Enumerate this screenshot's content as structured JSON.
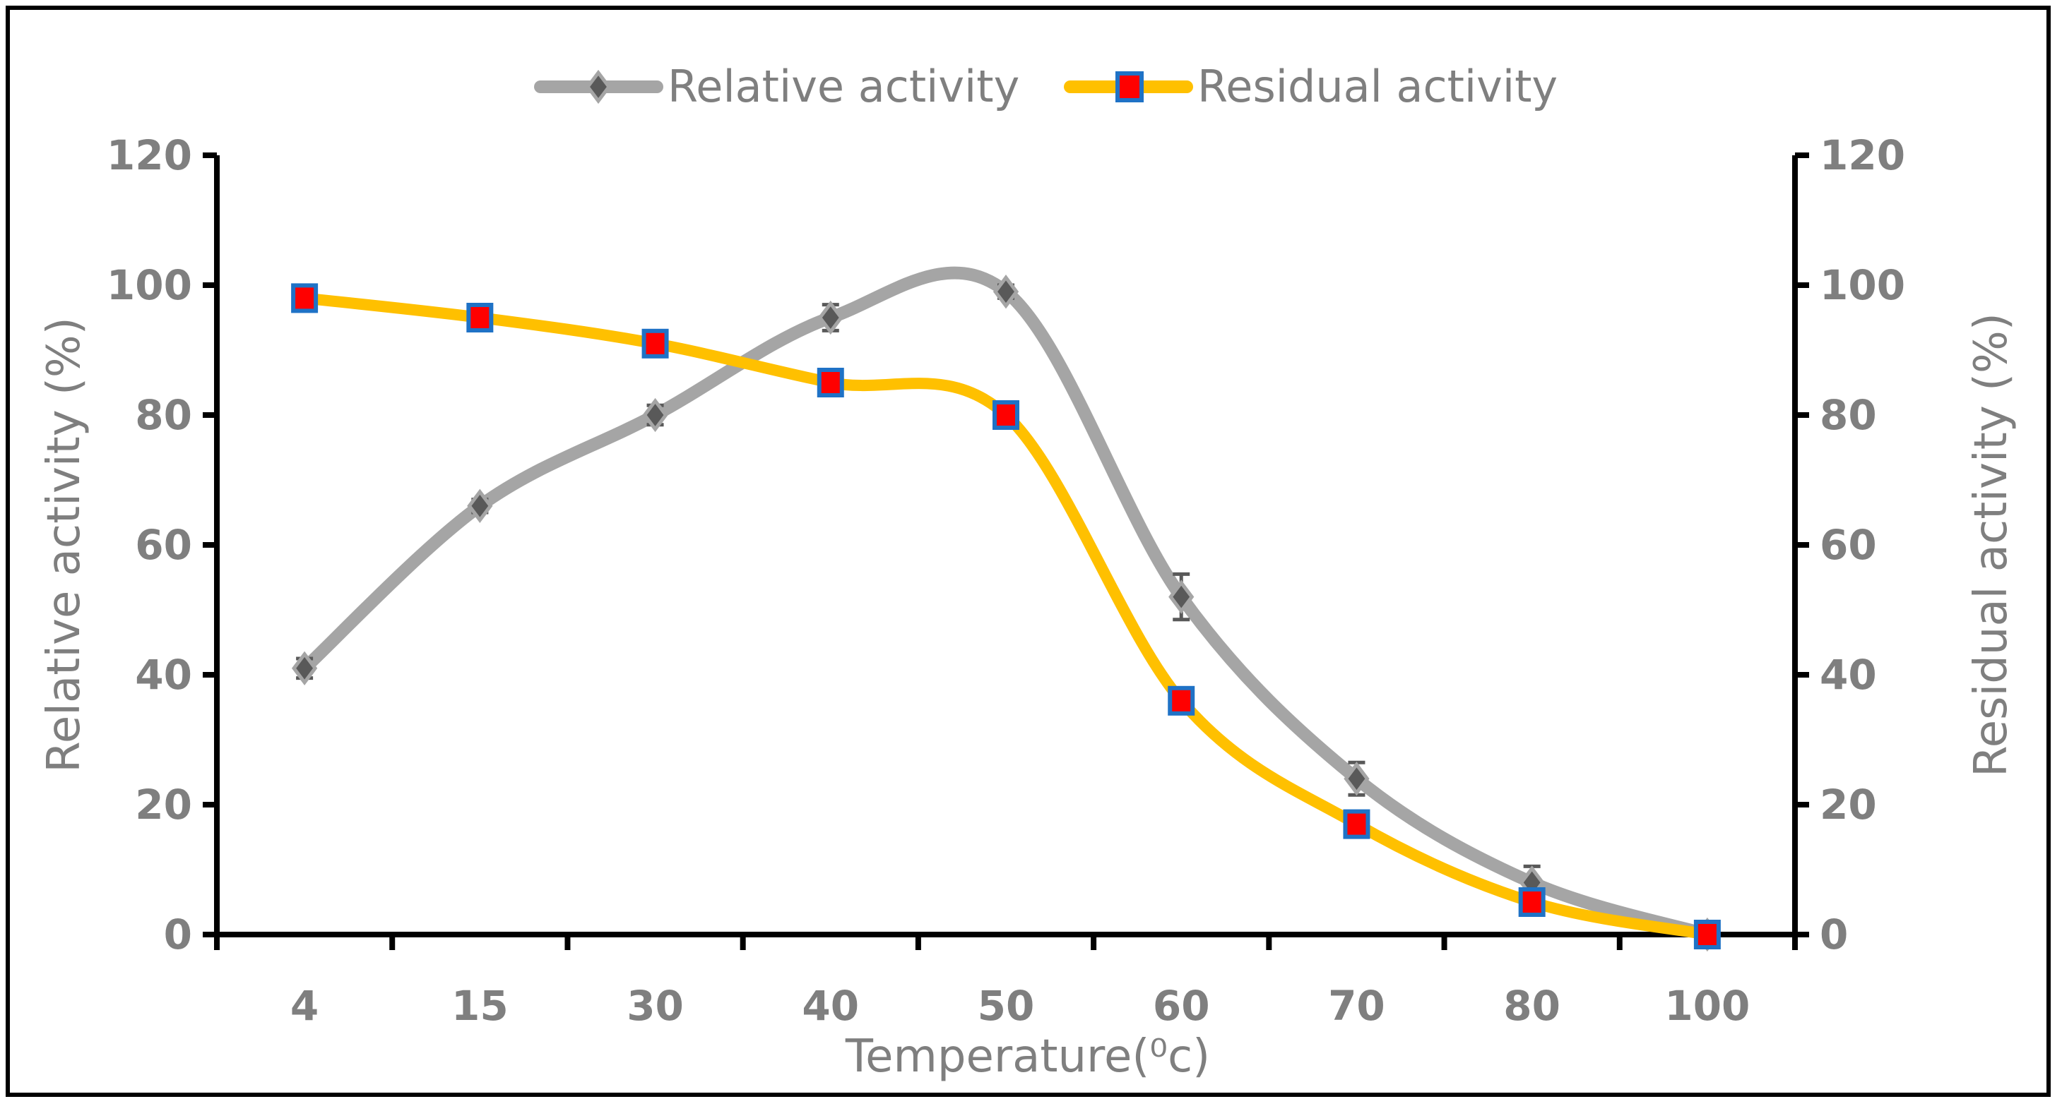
{
  "chart_data": {
    "type": "line",
    "title": "",
    "xlabel": "Temperature(⁰c)",
    "ylabel": "Relative activity (%)",
    "y2label": "Residual activity (%)",
    "categories": [
      "4",
      "15",
      "30",
      "40",
      "50",
      "60",
      "70",
      "80",
      "100"
    ],
    "ylim": [
      0,
      120
    ],
    "y2lim": [
      0,
      120
    ],
    "yticks": [
      "0",
      "20",
      "40",
      "60",
      "80",
      "100",
      "120"
    ],
    "grid": false,
    "legend_position": "top-center",
    "series": [
      {
        "name": "Relative activity",
        "axis": "left",
        "values": [
          41,
          66,
          80,
          95,
          99,
          52,
          24,
          8,
          0
        ],
        "errors": [
          1.5,
          1,
          1.5,
          2,
          1,
          3.5,
          2.5,
          2.5,
          0
        ],
        "color": "#a5a5a5",
        "marker": "diamond",
        "marker_color": "#595959"
      },
      {
        "name": "Residual activity",
        "axis": "right",
        "values": [
          98,
          95,
          91,
          85,
          80,
          36,
          17,
          5,
          0
        ],
        "color": "#ffc000",
        "marker": "square",
        "marker_color": "#ff0000",
        "marker_edge": "#1f72c6"
      }
    ]
  }
}
